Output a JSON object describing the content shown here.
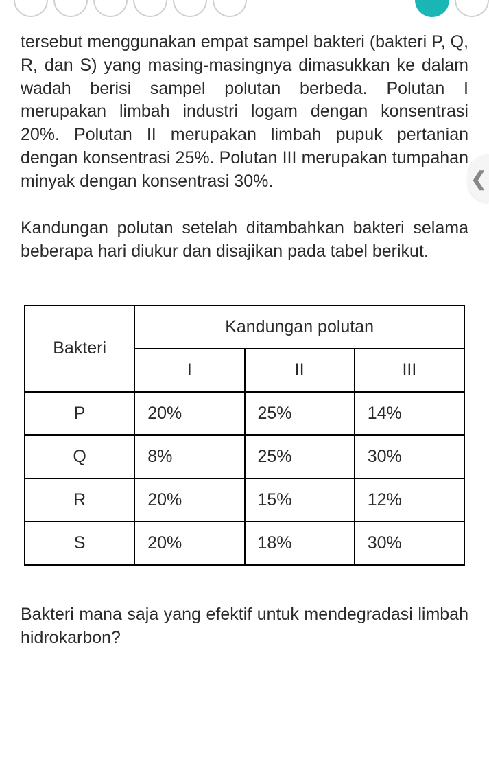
{
  "top": {
    "outline_count": 6,
    "filled_color": "#1ab5b5",
    "outline_border": "#d0d0d0"
  },
  "paragraph1": "tersebut menggunakan empat sampel bakteri (bakteri P, Q, R, dan S) yang masing-masingnya dimasukkan ke dalam wadah berisi sampel polutan berbeda. Polutan I merupakan limbah industri logam dengan konsentrasi 20%. Polutan II merupakan limbah pupuk pertanian dengan konsentrasi 25%. Polutan III merupakan tumpahan minyak dengan konsentrasi 30%.",
  "paragraph2": "Kandungan polutan setelah ditambahkan bakteri selama beberapa hari diukur dan disajikan pada tabel berikut.",
  "table": {
    "type": "table",
    "header_bakteri": "Bakteri",
    "header_kandungan": "Kandungan polutan",
    "columns": [
      "I",
      "II",
      "III"
    ],
    "rows": [
      {
        "label": "P",
        "vals": [
          "20%",
          "25%",
          "14%"
        ]
      },
      {
        "label": "Q",
        "vals": [
          "8%",
          "25%",
          "30%"
        ]
      },
      {
        "label": "R",
        "vals": [
          "20%",
          "15%",
          "12%"
        ]
      },
      {
        "label": "S",
        "vals": [
          "20%",
          "18%",
          "30%"
        ]
      }
    ],
    "border_color": "#000000",
    "text_color": "#2a2a2a",
    "fontsize": 25
  },
  "question": "Bakteri mana saja yang efektif untuk mendegradasi limbah hidrokarbon?",
  "sidetab": {
    "glyph": "❮",
    "bg": "#f5f5f5",
    "color": "#888888"
  }
}
